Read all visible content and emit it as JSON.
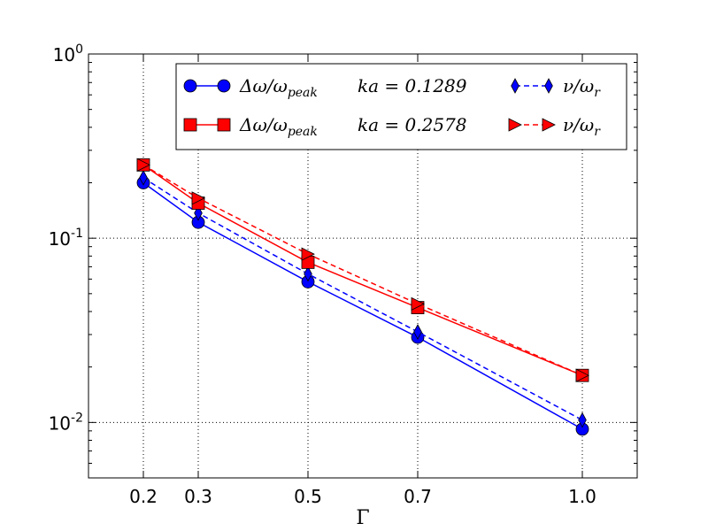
{
  "chart_data": {
    "type": "line",
    "title": "",
    "xlabel": "Γ",
    "ylabel": "",
    "yscale": "log",
    "xlim": [
      0.1,
      1.1
    ],
    "ylim": [
      0.005,
      1.0
    ],
    "grid": true,
    "legend_position": "top-right",
    "x": [
      0.2,
      0.3,
      0.5,
      0.7,
      1.0
    ],
    "x_tick_labels": [
      "0.2",
      "0.3",
      "0.5",
      "0.7",
      "1.0"
    ],
    "y_ticks": [
      {
        "value": 1.0,
        "base": "10",
        "exp": "0"
      },
      {
        "value": 0.1,
        "base": "10",
        "exp": "-1"
      },
      {
        "value": 0.01,
        "base": "10",
        "exp": "-2"
      }
    ],
    "series": [
      {
        "name": "Δω/ω_peak  ka = 0.1289",
        "legend_main": "Δω/ω",
        "legend_sub": "peak",
        "legend_ka": "ka = 0.1289",
        "color": "#0000ff",
        "linestyle": "solid",
        "marker": "circle",
        "values": [
          0.2,
          0.122,
          0.058,
          0.029,
          0.0092
        ]
      },
      {
        "name": "Δω/ω_peak  ka = 0.2578",
        "legend_main": "Δω/ω",
        "legend_sub": "peak",
        "legend_ka": "ka = 0.2578",
        "color": "#ff0000",
        "linestyle": "solid",
        "marker": "square",
        "values": [
          0.25,
          0.155,
          0.074,
          0.042,
          0.018
        ]
      },
      {
        "name": "ν/ω_r  (ka = 0.1289)",
        "legend_main": "ν/ω",
        "legend_sub": "r",
        "color": "#0000ff",
        "linestyle": "dashed",
        "marker": "diamond",
        "values": [
          0.213,
          0.137,
          0.064,
          0.031,
          0.0103
        ]
      },
      {
        "name": "ν/ω_r  (ka = 0.2578)",
        "legend_main": "ν/ω",
        "legend_sub": "r",
        "color": "#ff0000",
        "linestyle": "dashed",
        "marker": "triangle-right",
        "values": [
          0.25,
          0.165,
          0.082,
          0.044,
          0.018
        ]
      }
    ]
  }
}
